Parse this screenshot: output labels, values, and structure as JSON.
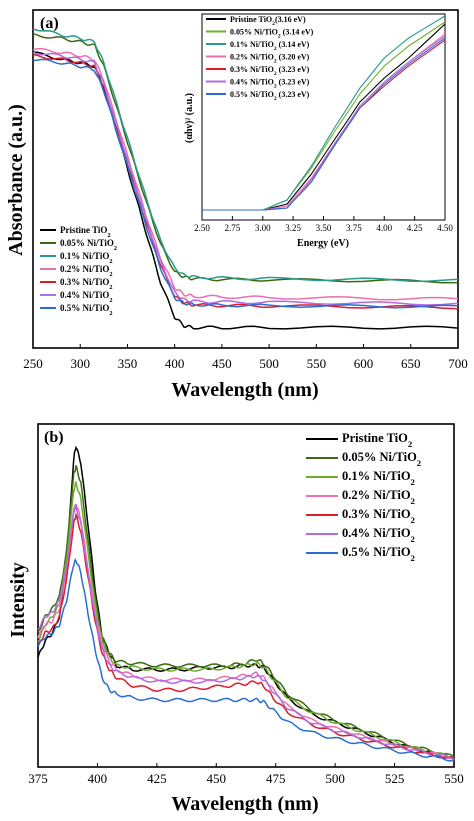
{
  "colors": {
    "pristine": "#000000",
    "ni005": "#3a6b12",
    "ni01": "#2a9a8c",
    "ni02": "#ee6fb0",
    "ni03": "#dd1c2e",
    "ni04": "#b06ce0",
    "ni05": "#2a6fd0",
    "ni01_b": "#6eab2e",
    "ni005_inset": "#70b02a"
  },
  "chart_data": [
    {
      "panel": "(a)",
      "type": "line",
      "xlabel": "Wavelength (nm)",
      "ylabel": "Absorbance (a.u.)",
      "xlim": [
        250,
        700
      ],
      "xticks": [
        "250",
        "300",
        "350",
        "400",
        "450",
        "500",
        "550",
        "600",
        "650",
        "700"
      ],
      "legend": [
        "Pristine TiO2",
        "0.05% Ni/TiO2",
        "0.1% Ni/TiO2",
        "0.2% Ni/TiO2",
        "0.3% Ni/TiO2",
        "0.4% Ni/TiO2",
        "0.5% Ni/TiO2"
      ],
      "legend_placement": "bottom-left",
      "series": [
        {
          "name": "Pristine TiO2",
          "color_key": "pristine",
          "x": [
            250,
            280,
            300,
            315,
            325,
            340,
            355,
            370,
            385,
            400,
            410,
            420,
            450,
            500,
            600,
            700
          ],
          "y": [
            0.82,
            0.8,
            0.79,
            0.78,
            0.72,
            0.58,
            0.44,
            0.3,
            0.16,
            0.06,
            0.035,
            0.03,
            0.03,
            0.03,
            0.03,
            0.03
          ]
        },
        {
          "name": "0.05% Ni/TiO2",
          "color_key": "ni005",
          "x": [
            250,
            280,
            300,
            315,
            325,
            340,
            355,
            370,
            385,
            400,
            410,
            420,
            450,
            500,
            600,
            700
          ],
          "y": [
            0.87,
            0.86,
            0.85,
            0.84,
            0.78,
            0.65,
            0.52,
            0.39,
            0.27,
            0.19,
            0.175,
            0.17,
            0.168,
            0.167,
            0.165,
            0.162
          ]
        },
        {
          "name": "0.1% Ni/TiO2",
          "color_key": "ni01",
          "x": [
            250,
            280,
            300,
            315,
            325,
            340,
            355,
            370,
            385,
            400,
            410,
            420,
            450,
            500,
            600,
            700
          ],
          "y": [
            0.89,
            0.87,
            0.86,
            0.85,
            0.79,
            0.66,
            0.53,
            0.4,
            0.28,
            0.2,
            0.18,
            0.175,
            0.172,
            0.17,
            0.168,
            0.165
          ]
        },
        {
          "name": "0.2% Ni/TiO2",
          "color_key": "ni02",
          "x": [
            250,
            280,
            300,
            315,
            325,
            340,
            355,
            370,
            385,
            400,
            410,
            420,
            450,
            500,
            600,
            700
          ],
          "y": [
            0.83,
            0.82,
            0.81,
            0.8,
            0.74,
            0.61,
            0.48,
            0.35,
            0.23,
            0.145,
            0.125,
            0.12,
            0.118,
            0.116,
            0.114,
            0.112
          ]
        },
        {
          "name": "0.3% Ni/TiO2",
          "color_key": "ni03",
          "x": [
            250,
            280,
            300,
            315,
            325,
            340,
            355,
            370,
            385,
            400,
            410,
            420,
            450,
            500,
            600,
            700
          ],
          "y": [
            0.81,
            0.8,
            0.79,
            0.78,
            0.72,
            0.59,
            0.46,
            0.33,
            0.21,
            0.12,
            0.1,
            0.095,
            0.093,
            0.092,
            0.09,
            0.088
          ]
        },
        {
          "name": "0.4% Ni/TiO2",
          "color_key": "ni04",
          "x": [
            250,
            280,
            300,
            315,
            325,
            340,
            355,
            370,
            385,
            400,
            410,
            420,
            450,
            500,
            600,
            700
          ],
          "y": [
            0.82,
            0.81,
            0.8,
            0.79,
            0.73,
            0.6,
            0.47,
            0.34,
            0.22,
            0.13,
            0.11,
            0.105,
            0.103,
            0.102,
            0.1,
            0.098
          ]
        },
        {
          "name": "0.5% Ni/TiO2",
          "color_key": "ni05",
          "x": [
            250,
            280,
            300,
            315,
            325,
            340,
            355,
            370,
            385,
            400,
            410,
            420,
            450,
            500,
            600,
            700
          ],
          "y": [
            0.8,
            0.79,
            0.78,
            0.77,
            0.71,
            0.58,
            0.45,
            0.32,
            0.2,
            0.115,
            0.1,
            0.096,
            0.094,
            0.093,
            0.091,
            0.09
          ]
        }
      ],
      "inset": {
        "type": "line",
        "xlabel": "Energy (eV)",
        "ylabel": "(αhν)² (a.u.)",
        "xlim": [
          2.5,
          4.5
        ],
        "xticks": [
          "2.50",
          "2.75",
          "3.00",
          "3.25",
          "3.50",
          "3.75",
          "4.00",
          "4.25",
          "4.50"
        ],
        "legend": [
          "Pristine TiO2(3.16 eV)",
          "0.05% Ni/TiO2 (3.14 eV)",
          "0.1% Ni/TiO2 (3.14 eV)",
          "0.2% Ni/TiO2 (3.20 eV)",
          "0.3% Ni/TiO2 (3.23 eV)",
          "0.4% Ni/TiO2 (3.23 eV)",
          "0.5% Ni/TiO2 (3.23 eV)"
        ],
        "band_gaps_eV": [
          3.16,
          3.14,
          3.14,
          3.2,
          3.23,
          3.23,
          3.23
        ],
        "series": [
          {
            "name": "Pristine TiO2",
            "color_key": "pristine",
            "x": [
              2.5,
              3.0,
              3.2,
              3.4,
              3.6,
              3.8,
              4.0,
              4.2,
              4.5
            ],
            "y": [
              0.02,
              0.02,
              0.05,
              0.2,
              0.38,
              0.56,
              0.68,
              0.78,
              0.95
            ]
          },
          {
            "name": "0.05% Ni/TiO2",
            "color_key": "ni005_inset",
            "x": [
              2.5,
              3.0,
              3.2,
              3.4,
              3.6,
              3.8,
              4.0,
              4.2,
              4.5
            ],
            "y": [
              0.02,
              0.02,
              0.07,
              0.23,
              0.42,
              0.6,
              0.74,
              0.84,
              0.96
            ]
          },
          {
            "name": "0.1% Ni/TiO2",
            "color_key": "ni01",
            "x": [
              2.5,
              3.0,
              3.2,
              3.4,
              3.6,
              3.8,
              4.0,
              4.2,
              4.5
            ],
            "y": [
              0.02,
              0.02,
              0.07,
              0.24,
              0.44,
              0.63,
              0.78,
              0.88,
              0.99
            ]
          },
          {
            "name": "0.2% Ni/TiO2",
            "color_key": "ni02",
            "x": [
              2.5,
              3.0,
              3.2,
              3.4,
              3.6,
              3.8,
              4.0,
              4.2,
              4.5
            ],
            "y": [
              0.02,
              0.02,
              0.04,
              0.18,
              0.36,
              0.54,
              0.66,
              0.76,
              0.9
            ]
          },
          {
            "name": "0.3% Ni/TiO2",
            "color_key": "ni03",
            "x": [
              2.5,
              3.0,
              3.2,
              3.4,
              3.6,
              3.8,
              4.0,
              4.2,
              4.5
            ],
            "y": [
              0.02,
              0.02,
              0.03,
              0.17,
              0.35,
              0.53,
              0.64,
              0.74,
              0.87
            ]
          },
          {
            "name": "0.4% Ni/TiO2",
            "color_key": "ni04",
            "x": [
              2.5,
              3.0,
              3.2,
              3.4,
              3.6,
              3.8,
              4.0,
              4.2,
              4.5
            ],
            "y": [
              0.02,
              0.02,
              0.03,
              0.17,
              0.36,
              0.54,
              0.66,
              0.76,
              0.89
            ]
          },
          {
            "name": "0.5% Ni/TiO2",
            "color_key": "ni05",
            "x": [
              2.5,
              3.0,
              3.2,
              3.4,
              3.6,
              3.8,
              4.0,
              4.2,
              4.5
            ],
            "y": [
              0.02,
              0.02,
              0.03,
              0.16,
              0.35,
              0.53,
              0.65,
              0.75,
              0.88
            ]
          }
        ]
      }
    },
    {
      "panel": "(b)",
      "type": "line",
      "xlabel": "Wavelength (nm)",
      "ylabel": "Intensity",
      "xlim": [
        375,
        550
      ],
      "xticks": [
        "375",
        "400",
        "425",
        "450",
        "475",
        "500",
        "525",
        "550"
      ],
      "legend": [
        "Pristine TiO2",
        "0.05% Ni/TiO2",
        "0.1% Ni/TiO2",
        "0.2% Ni/TiO2",
        "0.3% Ni/TiO2",
        "0.4% Ni/TiO2",
        "0.5% Ni/TiO2"
      ],
      "legend_placement": "top-right",
      "series": [
        {
          "name": "Pristine TiO2",
          "color_key": "pristine",
          "x": [
            375,
            378,
            381,
            384,
            387,
            390,
            391,
            393,
            396,
            399,
            402,
            405,
            408,
            415,
            425,
            435,
            445,
            455,
            462,
            467,
            470,
            474,
            480,
            490,
            500,
            510,
            520,
            530,
            540,
            550
          ],
          "y": [
            0.27,
            0.31,
            0.33,
            0.37,
            0.5,
            0.76,
            0.79,
            0.75,
            0.6,
            0.44,
            0.32,
            0.28,
            0.25,
            0.24,
            0.24,
            0.24,
            0.245,
            0.245,
            0.25,
            0.25,
            0.245,
            0.215,
            0.17,
            0.13,
            0.11,
            0.09,
            0.07,
            0.05,
            0.035,
            0.02
          ]
        },
        {
          "name": "0.05% Ni/TiO2",
          "color_key": "ni005",
          "x": [
            375,
            378,
            381,
            384,
            387,
            390,
            391,
            393,
            396,
            399,
            402,
            405,
            408,
            415,
            425,
            435,
            445,
            455,
            462,
            467,
            470,
            474,
            480,
            490,
            500,
            510,
            520,
            530,
            540,
            550
          ],
          "y": [
            0.33,
            0.37,
            0.39,
            0.42,
            0.53,
            0.72,
            0.74,
            0.7,
            0.56,
            0.42,
            0.32,
            0.28,
            0.26,
            0.255,
            0.25,
            0.25,
            0.25,
            0.25,
            0.255,
            0.265,
            0.255,
            0.225,
            0.18,
            0.14,
            0.115,
            0.095,
            0.075,
            0.055,
            0.04,
            0.025
          ]
        },
        {
          "name": "0.1% Ni/TiO2",
          "color_key": "ni01_b",
          "x": [
            375,
            378,
            381,
            384,
            387,
            390,
            391,
            393,
            396,
            399,
            402,
            405,
            408,
            415,
            425,
            435,
            445,
            455,
            462,
            467,
            470,
            474,
            480,
            490,
            500,
            510,
            520,
            530,
            540,
            550
          ],
          "y": [
            0.31,
            0.35,
            0.37,
            0.4,
            0.51,
            0.68,
            0.7,
            0.66,
            0.53,
            0.4,
            0.31,
            0.27,
            0.25,
            0.245,
            0.24,
            0.24,
            0.24,
            0.245,
            0.25,
            0.255,
            0.245,
            0.215,
            0.17,
            0.135,
            0.11,
            0.09,
            0.07,
            0.052,
            0.037,
            0.023
          ]
        },
        {
          "name": "0.2% Ni/TiO2",
          "color_key": "ni02",
          "x": [
            375,
            378,
            381,
            384,
            387,
            390,
            391,
            393,
            396,
            399,
            402,
            405,
            408,
            415,
            425,
            435,
            445,
            455,
            462,
            467,
            470,
            474,
            480,
            490,
            500,
            510,
            520,
            530,
            540,
            550
          ],
          "y": [
            0.32,
            0.35,
            0.36,
            0.39,
            0.48,
            0.63,
            0.65,
            0.61,
            0.49,
            0.38,
            0.3,
            0.26,
            0.24,
            0.225,
            0.215,
            0.215,
            0.215,
            0.22,
            0.225,
            0.23,
            0.22,
            0.19,
            0.15,
            0.115,
            0.095,
            0.078,
            0.062,
            0.047,
            0.034,
            0.022
          ]
        },
        {
          "name": "0.3% Ni/TiO2",
          "color_key": "ni03",
          "x": [
            375,
            378,
            381,
            384,
            387,
            390,
            391,
            393,
            396,
            399,
            402,
            405,
            408,
            415,
            425,
            435,
            445,
            455,
            462,
            467,
            470,
            474,
            480,
            490,
            500,
            510,
            520,
            530,
            540,
            550
          ],
          "y": [
            0.3,
            0.33,
            0.34,
            0.37,
            0.46,
            0.6,
            0.62,
            0.58,
            0.47,
            0.36,
            0.28,
            0.24,
            0.22,
            0.2,
            0.19,
            0.19,
            0.195,
            0.2,
            0.205,
            0.21,
            0.2,
            0.17,
            0.135,
            0.105,
            0.085,
            0.07,
            0.056,
            0.043,
            0.031,
            0.02
          ]
        },
        {
          "name": "0.4% Ni/TiO2",
          "color_key": "ni04",
          "x": [
            375,
            378,
            381,
            384,
            387,
            390,
            391,
            393,
            396,
            399,
            402,
            405,
            408,
            415,
            425,
            435,
            445,
            455,
            462,
            467,
            470,
            474,
            480,
            490,
            500,
            510,
            520,
            530,
            540,
            550
          ],
          "y": [
            0.34,
            0.37,
            0.38,
            0.41,
            0.49,
            0.63,
            0.64,
            0.6,
            0.48,
            0.37,
            0.29,
            0.25,
            0.235,
            0.22,
            0.21,
            0.21,
            0.21,
            0.215,
            0.22,
            0.225,
            0.215,
            0.185,
            0.145,
            0.11,
            0.09,
            0.075,
            0.06,
            0.046,
            0.033,
            0.021
          ]
        },
        {
          "name": "0.5% Ni/TiO2",
          "color_key": "ni05",
          "x": [
            375,
            378,
            381,
            384,
            387,
            390,
            391,
            393,
            396,
            399,
            402,
            405,
            408,
            415,
            425,
            435,
            445,
            455,
            462,
            467,
            470,
            474,
            480,
            490,
            500,
            510,
            520,
            530,
            540,
            550
          ],
          "y": [
            0.3,
            0.32,
            0.33,
            0.35,
            0.41,
            0.5,
            0.51,
            0.48,
            0.38,
            0.29,
            0.22,
            0.19,
            0.18,
            0.17,
            0.165,
            0.165,
            0.165,
            0.165,
            0.165,
            0.165,
            0.16,
            0.14,
            0.11,
            0.085,
            0.07,
            0.058,
            0.046,
            0.035,
            0.026,
            0.017
          ]
        }
      ]
    }
  ]
}
